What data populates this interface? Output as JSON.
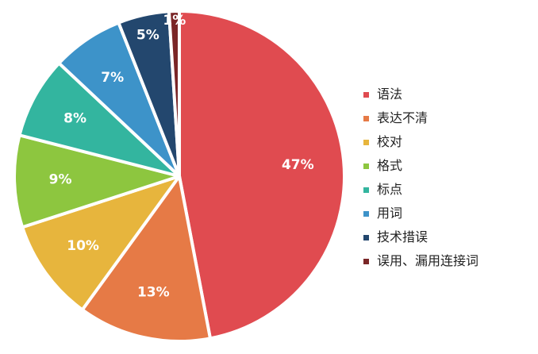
{
  "chart_data": {
    "type": "pie",
    "title": "",
    "categories": [
      "语法",
      "表达不清",
      "校对",
      "格式",
      "标点",
      "用词",
      "技术措误",
      "误用、漏用连接词"
    ],
    "values": [
      47,
      13,
      10,
      9,
      8,
      7,
      5,
      1
    ],
    "value_labels": [
      "47%",
      "13%",
      "10%",
      "9%",
      "8%",
      "7%",
      "5%",
      "1%"
    ],
    "colors": [
      "#e04b50",
      "#e67a46",
      "#e7b53d",
      "#8dc63f",
      "#33b59f",
      "#3d93c9",
      "#23476e",
      "#7a2627"
    ],
    "legend_position": "right",
    "start_angle_deg": 0,
    "direction": "clockwise",
    "unit": "%"
  }
}
